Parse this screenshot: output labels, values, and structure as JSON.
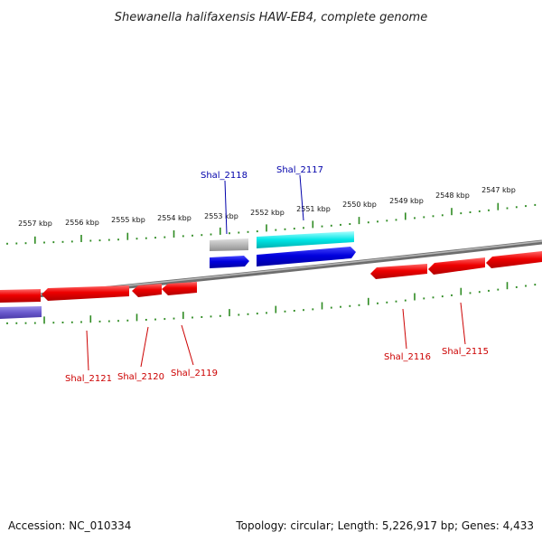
{
  "title": "Shewanella halifaxensis HAW-EB4, complete genome",
  "footer": {
    "accession": "Accession: NC_010334",
    "summary": "Topology: circular; Length: 5,226,917 bp; Genes: 4,433"
  },
  "colors": {
    "backbone": "#808080",
    "tick": "#2e8b22",
    "forward_gene": "#0000dd",
    "forward_label": "#0000aa",
    "reverse_gene": "#ee0000",
    "reverse_label": "#cc0000",
    "feature_cyan": "#00e5e5",
    "feature_grey": "#b8b8b8",
    "feature_purple": "#6a5acd"
  },
  "kbp_labels": [
    "2557 kbp",
    "2556 kbp",
    "2555 kbp",
    "2554 kbp",
    "2553 kbp",
    "2552 kbp",
    "2551 kbp",
    "2550 kbp",
    "2549 kbp",
    "2548 kbp",
    "2547 kbp"
  ],
  "genes": [
    {
      "id": "shal2118",
      "label": "Shal_2118",
      "strand": "forward"
    },
    {
      "id": "shal2117",
      "label": "Shal_2117",
      "strand": "forward"
    },
    {
      "id": "shal2116",
      "label": "Shal_2116",
      "strand": "reverse"
    },
    {
      "id": "shal2115",
      "label": "Shal_2115",
      "strand": "reverse"
    },
    {
      "id": "shal2121",
      "label": "Shal_2121",
      "strand": "reverse"
    },
    {
      "id": "shal2120",
      "label": "Shal_2120",
      "strand": "reverse"
    },
    {
      "id": "shal2119",
      "label": "Shal_2119",
      "strand": "reverse"
    }
  ]
}
